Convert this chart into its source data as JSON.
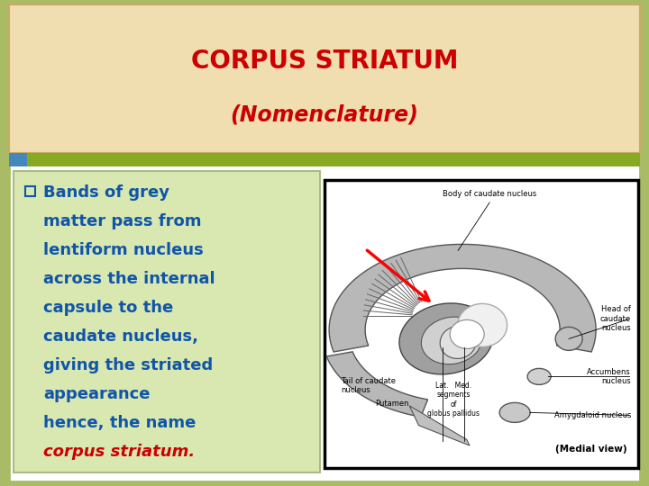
{
  "title_line1": "CORPUS STRIATUM",
  "title_line2": "(Nomenclature)",
  "title_color": "#cc0000",
  "header_bg": "#f0ddb0",
  "header_border": "#c8aa66",
  "green_bar_color": "#88aa22",
  "blue_bar_color": "#4488bb",
  "left_box_bg": "#d8e8b0",
  "left_box_border": "#aabb88",
  "slide_bg": "#ffffff",
  "outer_bg": "#aabb66",
  "bullet_text_lines": [
    "Bands of grey",
    "matter pass from",
    "lentiform nucleus",
    "across the internal",
    "capsule to the",
    "caudate nucleus,",
    "giving the striated",
    "appearance",
    "hence, the name"
  ],
  "italic_red_text": "corpus striatum.",
  "text_color_blue": "#1155aa",
  "text_color_red": "#cc0000",
  "title_fontsize": 20,
  "subtitle_fontsize": 17,
  "body_fontsize": 13
}
